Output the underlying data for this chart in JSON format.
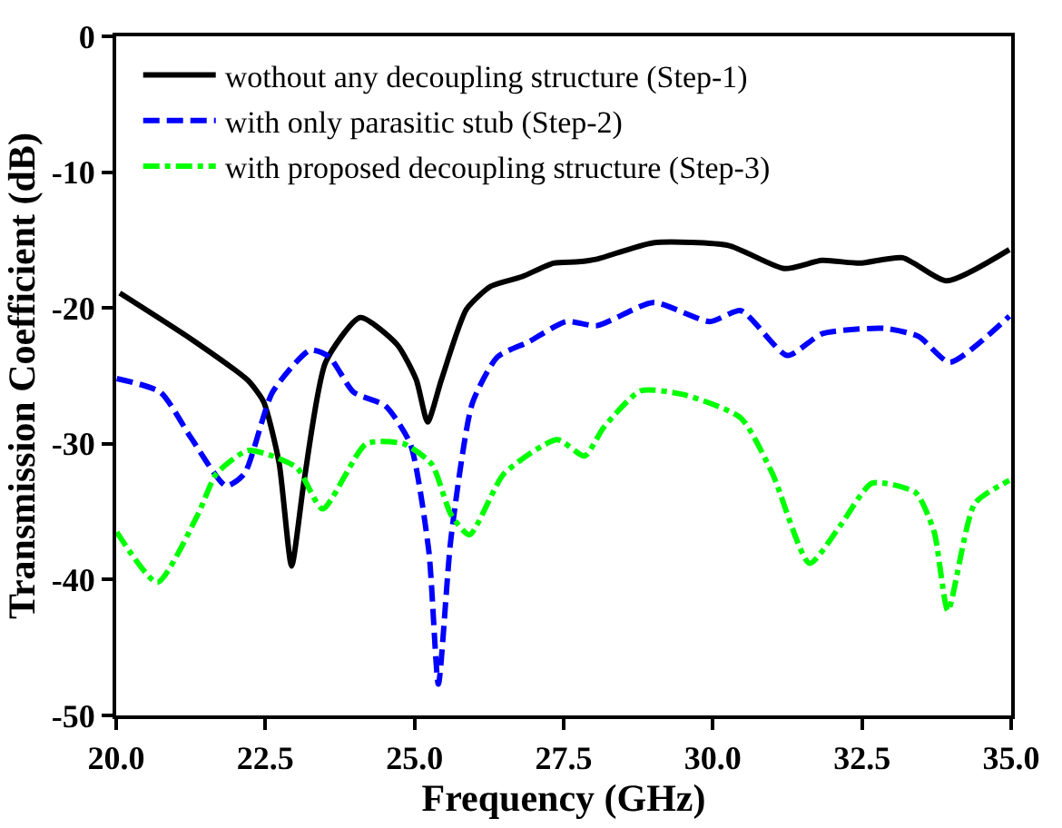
{
  "chart_data": {
    "type": "line",
    "xlabel": "Frequency (GHz)",
    "ylabel": "Transmission Coefficient (dB)",
    "xlim": [
      20,
      35
    ],
    "xticks": [
      {
        "value": 20,
        "label": "20.0"
      },
      {
        "value": 22.5,
        "label": "22.5"
      },
      {
        "value": 25,
        "label": "25.0"
      },
      {
        "value": 27.5,
        "label": "27.5"
      },
      {
        "value": 30,
        "label": "30.0"
      },
      {
        "value": 32.5,
        "label": "32.5"
      },
      {
        "value": 35,
        "label": "35.0"
      }
    ],
    "ylim": [
      -50,
      0
    ],
    "yticks": [
      -50,
      -40,
      -30,
      -20,
      -10,
      0
    ],
    "legend": "top left",
    "series": [
      {
        "name": "wothout any decoupling structure (Step-1)",
        "color": "#000000",
        "line_style": "solid",
        "x": [
          20.06,
          21.26,
          22.2,
          22.47,
          22.73,
          22.94,
          23.15,
          23.51,
          24.09,
          24.71,
          25.03,
          25.22,
          25.45,
          25.87,
          26.28,
          26.8,
          27.33,
          27.75,
          28.06,
          29.0,
          30.26,
          31.2,
          31.83,
          32.46,
          33.18,
          33.92,
          34.97
        ],
        "values": [
          -18.9,
          -22.3,
          -25.3,
          -26.9,
          -31.4,
          -39.0,
          -32.7,
          -24.0,
          -20.7,
          -22.7,
          -25.3,
          -28.4,
          -25.3,
          -20.1,
          -18.4,
          -17.7,
          -16.7,
          -16.6,
          -16.4,
          -15.2,
          -15.4,
          -17.1,
          -16.5,
          -16.7,
          -16.3,
          -18.0,
          -15.7
        ]
      },
      {
        "name": "with only parasitic stub (Step-2)",
        "color": "#0000ff",
        "line_style": "dashed",
        "x": [
          20.01,
          20.74,
          21.26,
          21.84,
          22.15,
          22.62,
          23.25,
          23.57,
          23.98,
          24.51,
          24.93,
          25.24,
          25.4,
          25.61,
          25.97,
          26.39,
          26.91,
          27.54,
          28.06,
          29.0,
          29.95,
          30.47,
          31.25,
          31.83,
          32.87,
          33.45,
          33.97,
          34.97
        ],
        "values": [
          -25.2,
          -26.2,
          -29.6,
          -33.1,
          -32.2,
          -26.2,
          -23.1,
          -23.6,
          -26.2,
          -27.2,
          -30.0,
          -37.9,
          -47.7,
          -37.0,
          -27.0,
          -23.6,
          -22.5,
          -21.0,
          -21.3,
          -19.6,
          -21.0,
          -20.2,
          -23.5,
          -21.9,
          -21.5,
          -22.1,
          -24.0,
          -20.6
        ]
      },
      {
        "name": "with proposed decoupling structure (Step-3)",
        "color": "#00ff00",
        "line_style": "dashdot",
        "x": [
          20.01,
          20.69,
          21.37,
          21.68,
          22.2,
          22.62,
          23.04,
          23.46,
          24.19,
          24.82,
          25.29,
          25.61,
          25.92,
          26.5,
          27.39,
          27.85,
          28.17,
          28.79,
          29.53,
          30.47,
          31.0,
          31.62,
          32.14,
          32.67,
          33.4,
          33.71,
          33.94,
          34.39,
          34.97
        ],
        "values": [
          -36.5,
          -40.2,
          -35.2,
          -32.2,
          -30.5,
          -30.9,
          -31.8,
          -34.8,
          -30.0,
          -30.0,
          -31.5,
          -35.2,
          -36.7,
          -32.2,
          -29.7,
          -30.9,
          -28.8,
          -26.1,
          -26.4,
          -28.1,
          -32.2,
          -38.8,
          -36.0,
          -32.9,
          -33.6,
          -36.5,
          -42.3,
          -34.4,
          -32.7
        ]
      }
    ]
  }
}
